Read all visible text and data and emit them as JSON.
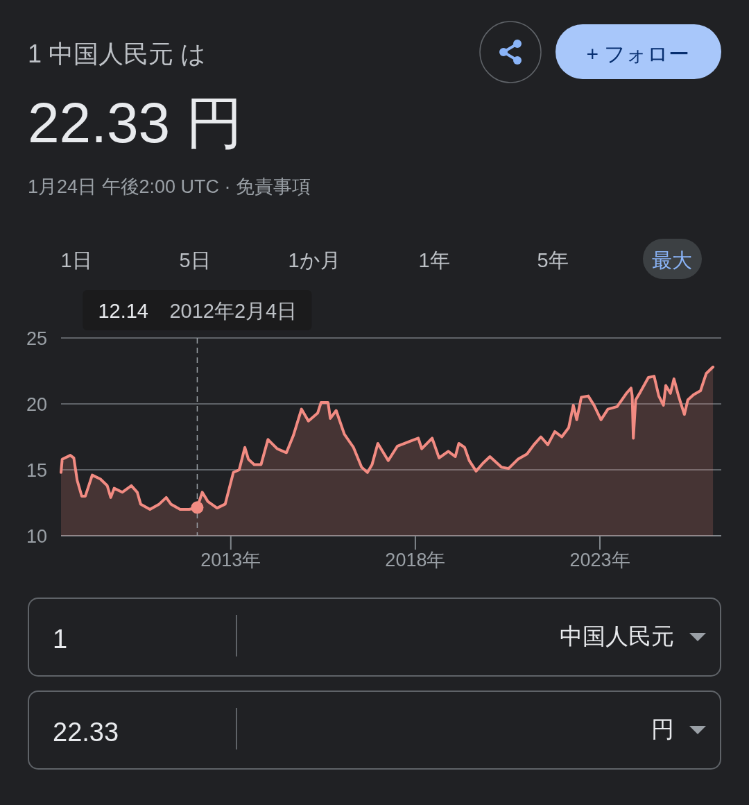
{
  "chart_data": {
    "type": "area",
    "title": "1 中国人民元 は",
    "subtitle": "22.33 円",
    "annotations": [
      "1月24日 午後2:00 UTC · 免責事項",
      "1日",
      "5日",
      "1か月",
      "1年",
      "5年",
      "最大",
      "+ フォロー",
      "12.14",
      "1",
      "中国人民元",
      "22.33",
      "円"
    ],
    "x": [
      "2008-05-27",
      "2008-06-08",
      "2008-08-27",
      "2008-09-30",
      "2008-11-03",
      "2008-12-18",
      "2009-01-22",
      "2009-04-01",
      "2009-06-20",
      "2009-08-27",
      "2009-10-01",
      "2009-11-04",
      "2010-01-23",
      "2010-04-23",
      "2010-06-20",
      "2010-07-24",
      "2010-10-24",
      "2011-01-24",
      "2011-04-03",
      "2011-05-19",
      "2011-08-18",
      "2011-11-17",
      "2012-02-04",
      "2012-03-24",
      "2012-05-19",
      "2012-08-18",
      "2012-11-06",
      "2013-01-26",
      "2013-03-25",
      "2013-05-20",
      "2013-06-24",
      "2013-08-20",
      "2013-10-27",
      "2014-01-04",
      "2014-04-05",
      "2014-07-05",
      "2014-09-12",
      "2014-12-01",
      "2015-02-08",
      "2015-05-10",
      "2015-06-13",
      "2015-08-21",
      "2015-09-13",
      "2015-11-09",
      "2016-01-29",
      "2016-04-29",
      "2016-07-18",
      "2016-09-14",
      "2016-10-30",
      "2016-12-26",
      "2017-04-08",
      "2017-07-08",
      "2017-11-22",
      "2018-01-30",
      "2018-03-05",
      "2018-06-16",
      "2018-08-24",
      "2018-11-23",
      "2019-01-31",
      "2019-03-07",
      "2019-05-03",
      "2019-06-18",
      "2019-08-25",
      "2019-11-01",
      "2020-01-09",
      "2020-05-03",
      "2020-07-11",
      "2020-10-11",
      "2021-01-10",
      "2021-03-19",
      "2021-05-27",
      "2021-08-04",
      "2021-10-12",
      "2021-12-20",
      "2022-02-26",
      "2022-04-13",
      "2022-05-17",
      "2022-07-01",
      "2022-09-08",
      "2022-11-04",
      "2023-01-12",
      "2023-03-21",
      "2023-06-21",
      "2023-09-20",
      "2023-11-05",
      "2023-11-17",
      "2023-11-28",
      "2023-12-21",
      "2024-02-05",
      "2024-04-25",
      "2024-06-21",
      "2024-08-06",
      "2024-09-21",
      "2024-10-14",
      "2024-11-29",
      "2025-01-03",
      "2025-02-17",
      "2025-04-16",
      "2025-05-20",
      "2025-07-16",
      "2025-09-23",
      "2025-11-18",
      "2026-01-24"
    ],
    "series": [
      {
        "color": "#f28b82",
        "values": [
          14.8,
          15.8,
          16.1,
          15.9,
          14.2,
          13.0,
          13.0,
          14.6,
          14.3,
          13.8,
          12.9,
          13.6,
          13.3,
          13.8,
          13.3,
          12.4,
          12.0,
          12.4,
          12.9,
          12.4,
          12.0,
          12.0,
          12.14,
          13.3,
          12.6,
          12.1,
          12.4,
          14.8,
          15.0,
          16.7,
          15.8,
          15.4,
          15.4,
          17.3,
          16.6,
          16.3,
          17.6,
          19.6,
          18.7,
          19.3,
          20.1,
          20.1,
          18.9,
          19.5,
          17.7,
          16.7,
          15.2,
          14.8,
          15.4,
          17.0,
          15.7,
          16.8,
          17.2,
          17.4,
          16.6,
          17.4,
          15.9,
          16.4,
          16.0,
          17.0,
          16.7,
          15.7,
          14.9,
          15.5,
          16.0,
          15.2,
          15.1,
          15.8,
          16.2,
          16.9,
          17.5,
          16.9,
          17.9,
          17.5,
          18.2,
          19.9,
          18.8,
          20.5,
          20.6,
          19.9,
          18.8,
          19.6,
          19.8,
          20.8,
          21.2,
          20.6,
          17.4,
          20.3,
          20.9,
          22.0,
          22.1,
          20.6,
          19.9,
          21.4,
          20.8,
          21.9,
          20.6,
          19.2,
          20.3,
          20.7,
          21.0,
          22.3,
          22.8
        ]
      }
    ],
    "xlim": [
      "2008-05-27",
      "2026-04-16"
    ],
    "xticks": [
      {
        "value": "2013-01-01",
        "label": "2013年"
      },
      {
        "value": "2018-01-01",
        "label": "2018年"
      },
      {
        "value": "2023-01-01",
        "label": "2023年"
      }
    ],
    "ylim": [
      10,
      25
    ],
    "yticks": [
      10,
      15,
      20,
      25
    ],
    "grid": "y",
    "marker": "none",
    "line_style": "solid",
    "ref_lines": [
      {
        "axis": "x",
        "value": "2012-02-04",
        "label": "2012年2月4日",
        "line_style": "dashed"
      }
    ]
  }
}
